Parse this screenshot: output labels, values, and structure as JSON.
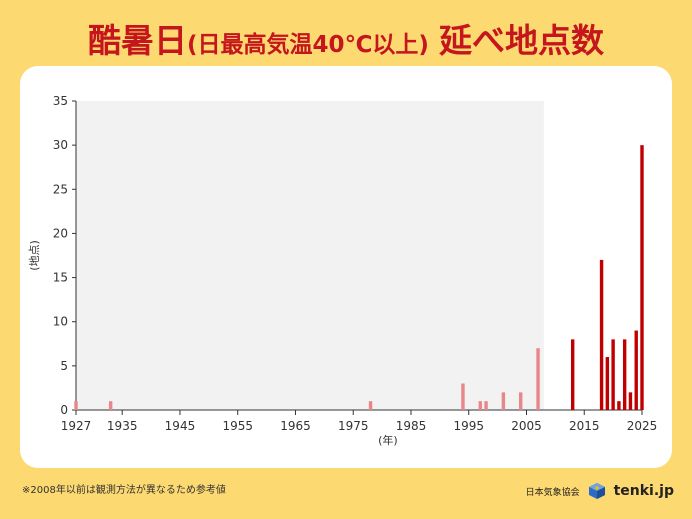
{
  "title": {
    "main": "酷暑日",
    "sub": "(日最高気温40℃以上)",
    "tail": "延べ地点数"
  },
  "chart_data": {
    "type": "bar",
    "ylabel": "(地点)",
    "xlabel": "(年)",
    "ylim": [
      0,
      35
    ],
    "yticks": [
      0,
      5,
      10,
      15,
      20,
      25,
      30,
      35
    ],
    "xlim": [
      1927,
      2025
    ],
    "xticks": [
      1927,
      1935,
      1945,
      1955,
      1965,
      1975,
      1985,
      1995,
      2005,
      2015,
      2025
    ],
    "shaded_period": [
      1927,
      2008
    ],
    "grid": false,
    "series": [
      {
        "name": "参考値",
        "color": "#E8878A",
        "x": [
          1927,
          1933,
          1978,
          1994,
          1997,
          1998,
          2001,
          2004,
          2007
        ],
        "values": [
          1,
          1,
          1,
          3,
          1,
          1,
          2,
          2,
          7
        ]
      },
      {
        "name": "",
        "color": "#C00000",
        "x": [
          2013,
          2018,
          2019,
          2020,
          2021,
          2022,
          2023,
          2024,
          2025
        ],
        "values": [
          8,
          17,
          6,
          8,
          1,
          8,
          2,
          9,
          30
        ]
      }
    ]
  },
  "footnote": "※2008年以前は観測方法が異なるため参考値",
  "credit": {
    "org": "日本気象協会",
    "brand": "tenki.jp",
    "logo": "tenki-logo-icon"
  }
}
